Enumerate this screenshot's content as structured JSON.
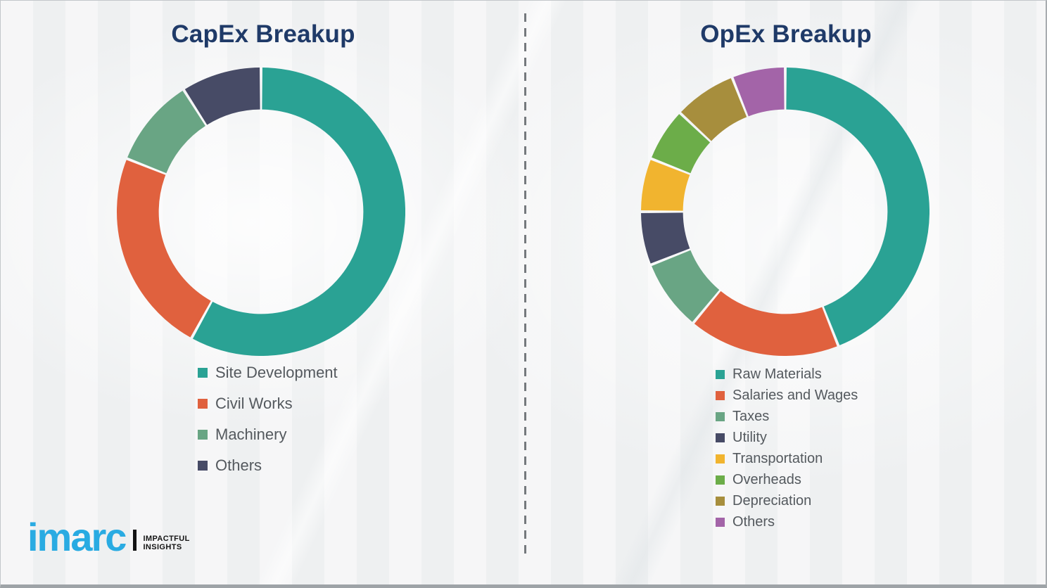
{
  "page": {
    "background_color": "#f2f3f4",
    "divider_color": "#75797d",
    "titles_color": "#1f3a68",
    "legend_text_color": "#54595e"
  },
  "chart_data": [
    {
      "type": "donut",
      "title": "CapEx Breakup",
      "categories": [
        "Site Development",
        "Civil Works",
        "Machinery",
        "Others"
      ],
      "values": [
        58,
        23,
        10,
        9
      ],
      "unit": "percent_share_estimated_from_arc_angles",
      "colors": [
        "#2aa294",
        "#e0613e",
        "#69a584",
        "#474b66"
      ],
      "start_angle_deg": 0,
      "direction": "clockwise",
      "legend_position": "below-left",
      "data_labels": false
    },
    {
      "type": "donut",
      "title": "OpEx Breakup",
      "categories": [
        "Raw Materials",
        "Salaries and Wages",
        "Taxes",
        "Utility",
        "Transportation",
        "Overheads",
        "Depreciation",
        "Others"
      ],
      "values": [
        44,
        17,
        8,
        6,
        6,
        6,
        7,
        6
      ],
      "unit": "percent_share_estimated_from_arc_angles",
      "colors": [
        "#2aa294",
        "#e0613e",
        "#69a584",
        "#474b66",
        "#f1b42f",
        "#6cad49",
        "#a78e3d",
        "#a364a8"
      ],
      "start_angle_deg": 0,
      "direction": "clockwise",
      "legend_position": "below-left",
      "data_labels": false
    }
  ],
  "logo": {
    "brand": "imarc",
    "tagline_line1": "IMPACTFUL",
    "tagline_line2": "INSIGHTS",
    "brand_color": "#29abe2",
    "tagline_color": "#141414"
  }
}
